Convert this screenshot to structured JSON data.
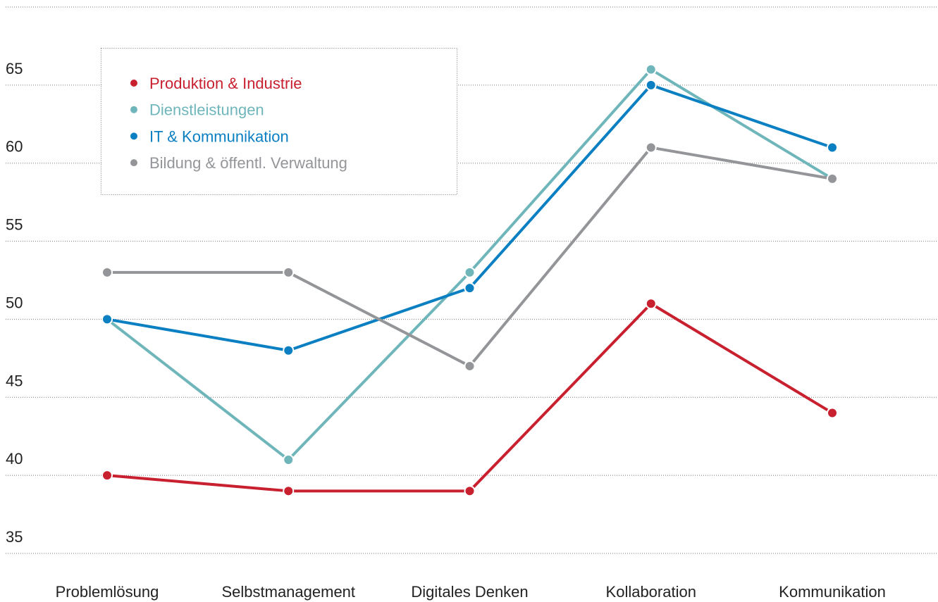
{
  "chart_data": {
    "type": "line",
    "categories": [
      "Problemlösung",
      "Selbstmanagement",
      "Digitales Denken",
      "Kollaboration",
      "Kommunikation"
    ],
    "series": [
      {
        "name": "Produktion & Industrie",
        "color": "#c8202f",
        "values": [
          40,
          39,
          39,
          51,
          44
        ]
      },
      {
        "name": "Dienstleistungen",
        "color": "#6fb6bb",
        "values": [
          50,
          41,
          53,
          66,
          59
        ]
      },
      {
        "name": "IT & Kommunikation",
        "color": "#0a7fc2",
        "values": [
          50,
          48,
          52,
          65,
          61
        ]
      },
      {
        "name": "Bildung & öffentl. Verwaltung",
        "color": "#939598",
        "values": [
          53,
          53,
          47,
          61,
          59
        ]
      }
    ],
    "ylim": [
      35,
      70
    ],
    "yticks": [
      35,
      40,
      45,
      50,
      55,
      60,
      65
    ],
    "grid": true,
    "legend": "upper left"
  }
}
